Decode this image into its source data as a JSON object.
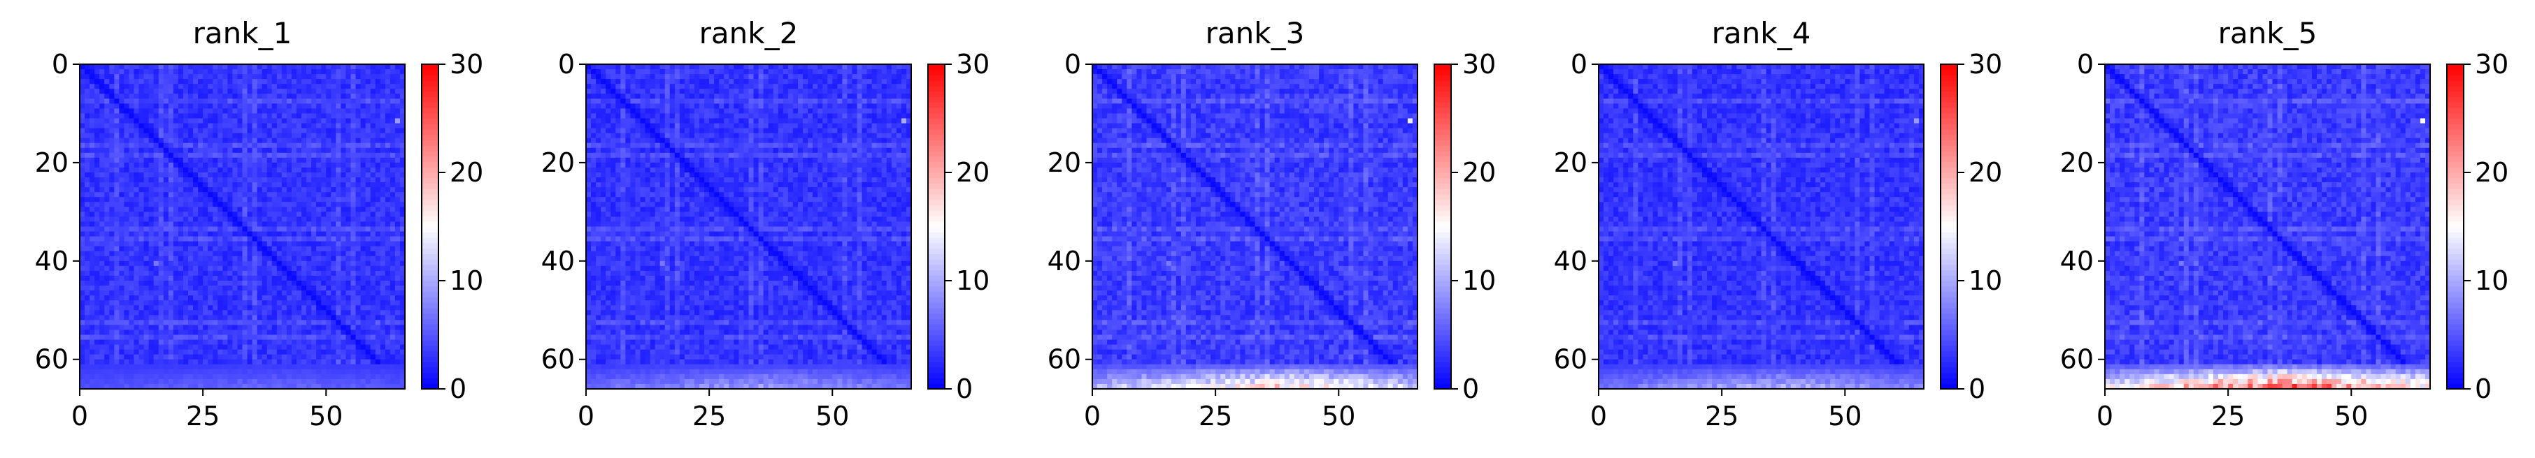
{
  "figure": {
    "colormap": {
      "name": "bwr",
      "low": "#0000ff",
      "mid": "#ffffff",
      "high": "#ff0000"
    },
    "panels": [
      {
        "title": "rank_1"
      },
      {
        "title": "rank_2"
      },
      {
        "title": "rank_3"
      },
      {
        "title": "rank_4"
      },
      {
        "title": "rank_5"
      }
    ]
  },
  "chart_data": [
    {
      "type": "heatmap",
      "title": "rank_1",
      "xlabel": "",
      "ylabel": "",
      "matrix_size": 66,
      "x_ticks": [
        0,
        25,
        50
      ],
      "y_ticks": [
        0,
        20,
        40,
        60
      ],
      "xlim": [
        0,
        66
      ],
      "ylim": [
        66,
        0
      ],
      "colorbar": {
        "range": [
          0,
          30
        ],
        "ticks": [
          0,
          10,
          20,
          30
        ]
      },
      "value_estimates": {
        "typical": 3,
        "diagonal": 0.5,
        "bottom_rows_max": 6,
        "stripe_rows": [
          7,
          16,
          18,
          33,
          35,
          52,
          55
        ]
      },
      "outlier_cells": [
        {
          "row": 11,
          "col": 64,
          "value": 9
        },
        {
          "row": 40,
          "col": 15,
          "value": 7
        }
      ]
    },
    {
      "type": "heatmap",
      "title": "rank_2",
      "xlabel": "",
      "ylabel": "",
      "matrix_size": 66,
      "x_ticks": [
        0,
        25,
        50
      ],
      "y_ticks": [
        0,
        20,
        40,
        60
      ],
      "xlim": [
        0,
        66
      ],
      "ylim": [
        66,
        0
      ],
      "colorbar": {
        "range": [
          0,
          30
        ],
        "ticks": [
          0,
          10,
          20,
          30
        ]
      },
      "value_estimates": {
        "typical": 3,
        "diagonal": 0.5,
        "bottom_rows_max": 9,
        "stripe_rows": [
          7,
          16,
          18,
          33,
          35,
          52,
          55
        ]
      },
      "outlier_cells": [
        {
          "row": 11,
          "col": 64,
          "value": 10
        },
        {
          "row": 40,
          "col": 15,
          "value": 7
        }
      ]
    },
    {
      "type": "heatmap",
      "title": "rank_3",
      "xlabel": "",
      "ylabel": "",
      "matrix_size": 66,
      "x_ticks": [
        0,
        25,
        50
      ],
      "y_ticks": [
        0,
        20,
        40,
        60
      ],
      "xlim": [
        0,
        66
      ],
      "ylim": [
        66,
        0
      ],
      "colorbar": {
        "range": [
          0,
          30
        ],
        "ticks": [
          0,
          10,
          20,
          30
        ]
      },
      "value_estimates": {
        "typical": 3.5,
        "diagonal": 0.5,
        "bottom_rows_max": 17,
        "stripe_rows": [
          7,
          16,
          18,
          33,
          35,
          52,
          55
        ]
      },
      "outlier_cells": [
        {
          "row": 11,
          "col": 64,
          "value": 14
        },
        {
          "row": 40,
          "col": 15,
          "value": 7
        }
      ]
    },
    {
      "type": "heatmap",
      "title": "rank_4",
      "xlabel": "",
      "ylabel": "",
      "matrix_size": 66,
      "x_ticks": [
        0,
        25,
        50
      ],
      "y_ticks": [
        0,
        20,
        40,
        60
      ],
      "xlim": [
        0,
        66
      ],
      "ylim": [
        66,
        0
      ],
      "colorbar": {
        "range": [
          0,
          30
        ],
        "ticks": [
          0,
          10,
          20,
          30
        ]
      },
      "value_estimates": {
        "typical": 3,
        "diagonal": 0.5,
        "bottom_rows_max": 10,
        "stripe_rows": [
          7,
          16,
          18,
          33,
          35,
          52,
          55
        ]
      },
      "outlier_cells": [
        {
          "row": 11,
          "col": 64,
          "value": 9
        },
        {
          "row": 40,
          "col": 15,
          "value": 7
        }
      ]
    },
    {
      "type": "heatmap",
      "title": "rank_5",
      "xlabel": "",
      "ylabel": "",
      "matrix_size": 66,
      "x_ticks": [
        0,
        25,
        50
      ],
      "y_ticks": [
        0,
        20,
        40,
        60
      ],
      "xlim": [
        0,
        66
      ],
      "ylim": [
        66,
        0
      ],
      "colorbar": {
        "range": [
          0,
          30
        ],
        "ticks": [
          0,
          10,
          20,
          30
        ]
      },
      "value_estimates": {
        "typical": 3.5,
        "diagonal": 0.5,
        "bottom_rows_max": 24,
        "stripe_rows": [
          7,
          16,
          18,
          33,
          35,
          52,
          55
        ]
      },
      "outlier_cells": [
        {
          "row": 11,
          "col": 64,
          "value": 15
        },
        {
          "row": 40,
          "col": 15,
          "value": 7
        }
      ]
    }
  ]
}
